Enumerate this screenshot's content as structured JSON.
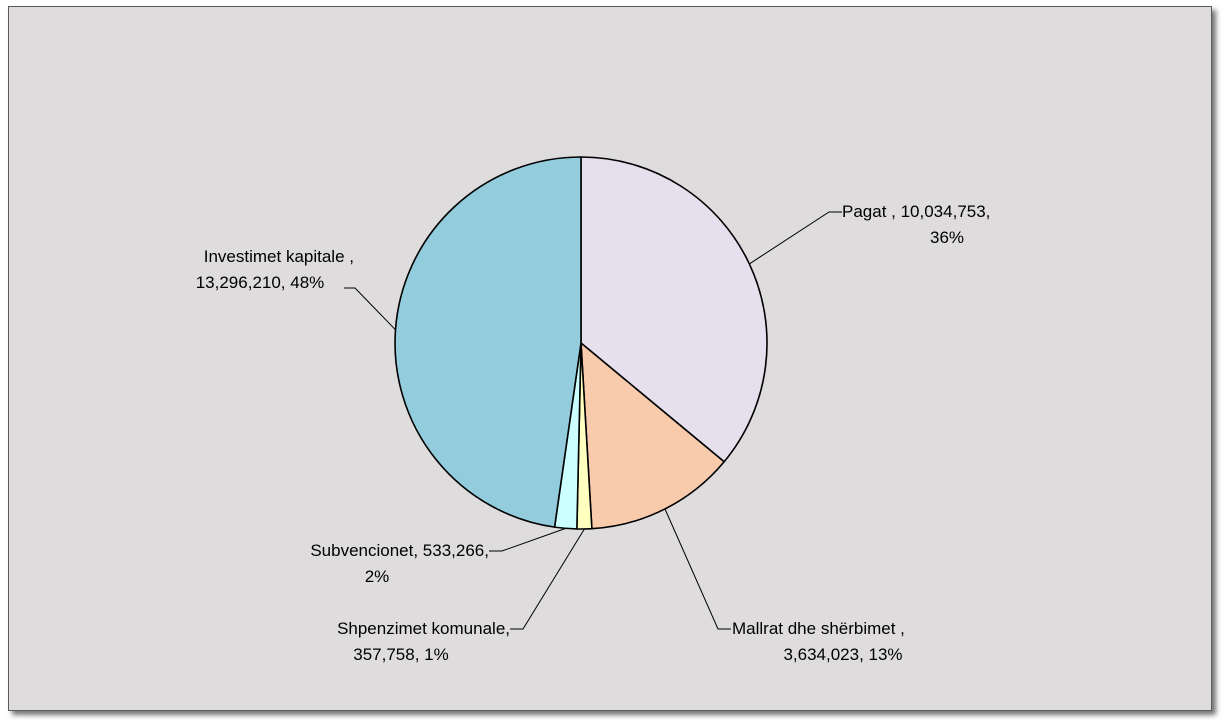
{
  "chart_data": {
    "type": "pie",
    "title": "",
    "slices": [
      {
        "name": "Pagat",
        "value": 10034753,
        "percent": 36,
        "color": "#e6e0ee",
        "label_line1": "Pagat , 10,034,753,",
        "label_line2": "36%"
      },
      {
        "name": "Mallrat dhe shërbimet",
        "value": 3634023,
        "percent": 13,
        "color": "#f8cbad",
        "label_line1": "Mallrat dhe shërbimet ,",
        "label_line2": "3,634,023, 13%"
      },
      {
        "name": "Shpenzimet komunale",
        "value": 357758,
        "percent": 1,
        "color": "#ffffc0",
        "label_line1": "Shpenzimet komunale,",
        "label_line2": "357,758, 1%"
      },
      {
        "name": "Subvencionet",
        "value": 533266,
        "percent": 2,
        "color": "#ccffff",
        "label_line1": "Subvencionet, 533,266,",
        "label_line2": "2%"
      },
      {
        "name": "Investimet kapitale",
        "value": 13296210,
        "percent": 48,
        "color": "#93cddd",
        "label_line1": "Investimet  kapitale ,",
        "label_line2": "13,296,210, 48%"
      }
    ]
  }
}
